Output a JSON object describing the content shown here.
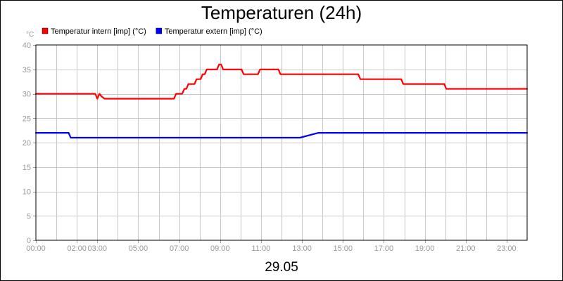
{
  "chart_data": {
    "type": "line",
    "title": "Temperaturen (24h)",
    "xlabel": "29.05",
    "ylabel": "°C",
    "ylim": [
      0,
      40
    ],
    "yticks": [
      0,
      5,
      10,
      15,
      20,
      25,
      30,
      35,
      40
    ],
    "xlim": [
      0,
      24
    ],
    "xticks": [
      {
        "h": 0,
        "label": "00:00"
      },
      {
        "h": 2,
        "label": "02:00"
      },
      {
        "h": 3,
        "label": "03:00"
      },
      {
        "h": 5,
        "label": "05:00"
      },
      {
        "h": 7,
        "label": "07:00"
      },
      {
        "h": 9,
        "label": "09:00"
      },
      {
        "h": 11,
        "label": "11:00"
      },
      {
        "h": 13,
        "label": "13:00"
      },
      {
        "h": 15,
        "label": "15:00"
      },
      {
        "h": 17,
        "label": "17:00"
      },
      {
        "h": 19,
        "label": "19:00"
      },
      {
        "h": 21,
        "label": "21:00"
      },
      {
        "h": 23,
        "label": "23:00"
      }
    ],
    "grid": true,
    "legend_position": "top-left",
    "series": [
      {
        "name": "Temperatur intern [imp] (°C)",
        "color": "#ff0000",
        "x": [
          0,
          2.9,
          3.0,
          3.1,
          3.2,
          3.35,
          5,
          6.75,
          6.85,
          7.15,
          7.25,
          7.35,
          7.45,
          7.75,
          7.85,
          8.05,
          8.15,
          8.25,
          8.35,
          8.85,
          8.95,
          9.05,
          9.15,
          9.25,
          10.05,
          10.15,
          10.85,
          10.95,
          11.85,
          11.95,
          15.75,
          15.85,
          17.85,
          17.95,
          19.95,
          20.05,
          24
        ],
        "y": [
          30,
          30,
          29,
          30,
          29.5,
          29,
          29,
          29,
          30,
          30,
          31,
          31,
          32,
          32,
          33,
          33,
          34,
          34,
          35,
          35,
          36,
          36,
          35,
          35,
          35,
          34,
          34,
          35,
          35,
          34,
          34,
          33,
          33,
          32,
          32,
          31,
          31
        ]
      },
      {
        "name": "Temperatur extern [imp] (°C)",
        "color": "#0000ff",
        "x": [
          0,
          1.6,
          1.7,
          12.9,
          13.8,
          24
        ],
        "y": [
          22,
          22,
          21,
          21,
          22,
          22
        ]
      }
    ]
  }
}
